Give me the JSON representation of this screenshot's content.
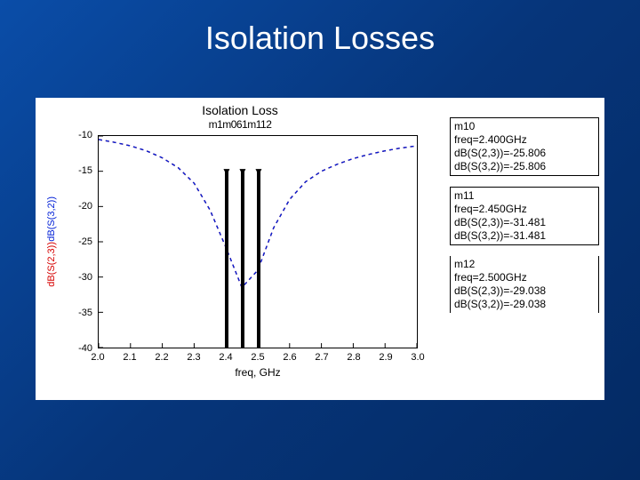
{
  "slide": {
    "title": "Isolation Losses",
    "bg_gradient": [
      "#0a4da8",
      "#06357a",
      "#042a63"
    ]
  },
  "chart": {
    "type": "line",
    "title": "Isolation Loss",
    "marker_label_row": "m1m061m112",
    "x_label": "freq, GHz",
    "y_labels": [
      {
        "text": "dB(S(3,2))",
        "color": "#001fd6"
      },
      {
        "text": "dB(S(2,3))",
        "color": "#d60000"
      }
    ],
    "xlim": [
      2.0,
      3.0
    ],
    "xtick_step": 0.1,
    "xtick_labels": [
      "2.0",
      "2.1",
      "2.2",
      "2.3",
      "2.4",
      "2.5",
      "2.6",
      "2.7",
      "2.8",
      "2.9",
      "3.0"
    ],
    "ylim": [
      -40,
      -10
    ],
    "ytick_step": 5,
    "ytick_labels": [
      "-10",
      "-15",
      "-20",
      "-25",
      "-30",
      "-35",
      "-40"
    ],
    "plot_border_color": "#000000",
    "background_color": "#ffffff",
    "series": [
      {
        "name": "dB(S(2,3))",
        "color": "#d60000",
        "dash": "4 4",
        "width": 1.4,
        "points": [
          [
            2.0,
            -10.5
          ],
          [
            2.05,
            -10.9
          ],
          [
            2.1,
            -11.4
          ],
          [
            2.15,
            -12.1
          ],
          [
            2.2,
            -13.1
          ],
          [
            2.25,
            -14.5
          ],
          [
            2.3,
            -16.7
          ],
          [
            2.35,
            -20.5
          ],
          [
            2.4,
            -25.81
          ],
          [
            2.45,
            -31.48
          ],
          [
            2.5,
            -29.04
          ],
          [
            2.55,
            -23.0
          ],
          [
            2.6,
            -19.0
          ],
          [
            2.65,
            -16.5
          ],
          [
            2.7,
            -15.0
          ],
          [
            2.75,
            -14.0
          ],
          [
            2.8,
            -13.2
          ],
          [
            2.85,
            -12.6
          ],
          [
            2.9,
            -12.1
          ],
          [
            2.95,
            -11.7
          ],
          [
            3.0,
            -11.4
          ]
        ]
      },
      {
        "name": "dB(S(3,2))",
        "color": "#001fd6",
        "dash": "4 4",
        "width": 1.4,
        "points": [
          [
            2.0,
            -10.5
          ],
          [
            2.05,
            -10.9
          ],
          [
            2.1,
            -11.4
          ],
          [
            2.15,
            -12.1
          ],
          [
            2.2,
            -13.1
          ],
          [
            2.25,
            -14.5
          ],
          [
            2.3,
            -16.7
          ],
          [
            2.35,
            -20.5
          ],
          [
            2.4,
            -25.81
          ],
          [
            2.45,
            -31.48
          ],
          [
            2.5,
            -29.04
          ],
          [
            2.55,
            -23.0
          ],
          [
            2.6,
            -19.0
          ],
          [
            2.65,
            -16.5
          ],
          [
            2.7,
            -15.0
          ],
          [
            2.75,
            -14.0
          ],
          [
            2.8,
            -13.2
          ],
          [
            2.85,
            -12.6
          ],
          [
            2.9,
            -12.1
          ],
          [
            2.95,
            -11.7
          ],
          [
            3.0,
            -11.4
          ]
        ]
      }
    ],
    "markers": [
      {
        "name": "m10",
        "x": 2.4,
        "tip": "▼"
      },
      {
        "name": "m11",
        "x": 2.45,
        "tip": "▼"
      },
      {
        "name": "m12",
        "x": 2.5,
        "tip": "▼"
      }
    ]
  },
  "marker_readouts": [
    {
      "name": "m10",
      "lines": [
        "m10",
        "freq=2.400GHz",
        "dB(S(2,3))=-25.806",
        "dB(S(3,2))=-25.806"
      ],
      "boxed": true
    },
    {
      "name": "m11",
      "lines": [
        "m11",
        "freq=2.450GHz",
        "dB(S(2,3))=-31.481",
        "dB(S(3,2))=-31.481"
      ],
      "boxed": true
    },
    {
      "name": "m12",
      "lines": [
        "m12",
        "freq=2.500GHz",
        "dB(S(2,3))=-29.038",
        "dB(S(3,2))=-29.038"
      ],
      "boxed": false
    }
  ]
}
